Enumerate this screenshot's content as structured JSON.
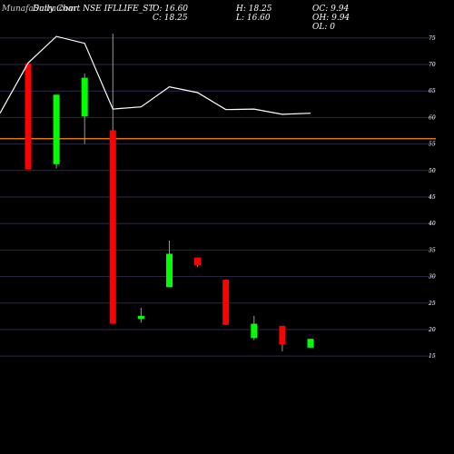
{
  "header": {
    "watermark": "MunafaSutra.com",
    "title": "Daily Chart NSE IFLLIFE_ST",
    "open_label": "O: 16.60",
    "close_label": "C: 18.25",
    "high_label": "H: 18.25",
    "low_label": "L: 16.60",
    "oc_label": "OC: 9.94",
    "oh_label": "OH: 9.94",
    "ol_label": "OL: 0"
  },
  "colors": {
    "background": "#000000",
    "grid": "#2a2a4a",
    "up": "#00ff00",
    "down": "#ff0000",
    "wick": "#999999",
    "ma_line": "#ffffff",
    "hline": "#ff8c00",
    "text": "#ffffff"
  },
  "chart_data": {
    "type": "candlestick",
    "title": "Daily Chart NSE IFLLIFE_ST",
    "xlabel": "",
    "ylabel": "",
    "ylim": [
      13,
      77
    ],
    "yticks": [
      15,
      20,
      25,
      30,
      35,
      40,
      45,
      50,
      55,
      60,
      65,
      70,
      75
    ],
    "grid": true,
    "reference_line": 56,
    "candles": [
      {
        "open": 70.2,
        "high": 70.2,
        "low": 50.2,
        "close": 50.2
      },
      {
        "open": 51.2,
        "high": 64.3,
        "low": 50.4,
        "close": 64.3
      },
      {
        "open": 60.2,
        "high": 68.3,
        "low": 55.0,
        "close": 67.5
      },
      {
        "open": 57.6,
        "high": 75.8,
        "low": 21.1,
        "close": 21.1
      },
      {
        "open": 22.0,
        "high": 24.1,
        "low": 21.3,
        "close": 22.6
      },
      {
        "open": 28.0,
        "high": 36.8,
        "low": 28.0,
        "close": 34.3
      },
      {
        "open": 33.6,
        "high": 33.6,
        "low": 31.8,
        "close": 32.1
      },
      {
        "open": 29.4,
        "high": 29.4,
        "low": 20.9,
        "close": 20.9
      },
      {
        "open": 18.4,
        "high": 22.6,
        "low": 18.0,
        "close": 21.1
      },
      {
        "open": 20.7,
        "high": 20.7,
        "low": 15.9,
        "close": 17.2
      },
      {
        "open": 16.6,
        "high": 18.25,
        "low": 16.6,
        "close": 18.25
      }
    ],
    "ma_line": [
      {
        "x": 0,
        "y": 60.8
      },
      {
        "x": 0.5,
        "y": 70.3
      },
      {
        "x": 1.5,
        "y": 75.3
      },
      {
        "x": 2.5,
        "y": 74.0
      },
      {
        "x": 3.5,
        "y": 61.6
      },
      {
        "x": 4.5,
        "y": 62.0
      },
      {
        "x": 5.5,
        "y": 65.8
      },
      {
        "x": 6.5,
        "y": 64.7
      },
      {
        "x": 7.5,
        "y": 61.5
      },
      {
        "x": 8.5,
        "y": 61.6
      },
      {
        "x": 9.5,
        "y": 60.6
      },
      {
        "x": 10.5,
        "y": 60.8
      }
    ]
  }
}
